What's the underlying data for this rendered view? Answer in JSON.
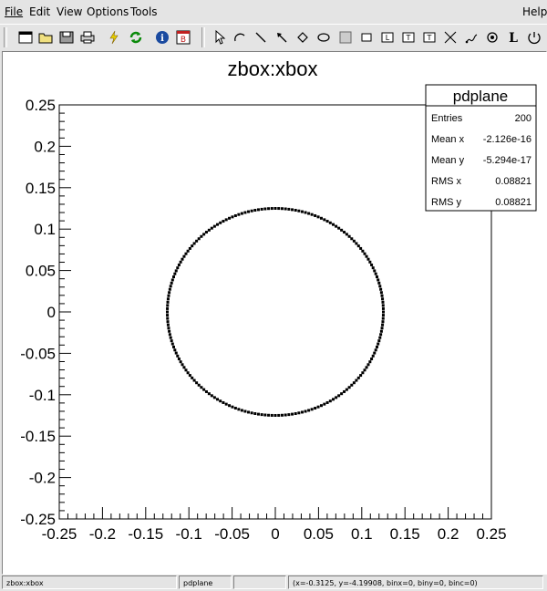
{
  "menu": {
    "file": "File",
    "edit": "Edit",
    "view": "View",
    "options": "Options",
    "tools": "Tools",
    "help": "Help"
  },
  "toolbar": {
    "icons": [
      "new-canvas-icon",
      "open-folder-icon",
      "save-icon",
      "print-icon",
      "lightning-icon",
      "refresh-icon",
      "info-icon",
      "browser-icon",
      "pointer-icon",
      "arc-icon",
      "line-icon",
      "arrow-icon",
      "diamond-icon",
      "ellipse-icon",
      "pad-icon",
      "pave-icon",
      "pavetext-label-icon",
      "pavestext-icon",
      "text-icon",
      "graph-cut-icon",
      "curly-arc-icon",
      "marker-icon",
      "latex-icon",
      "editor-icon"
    ]
  },
  "stats": {
    "title": "pdplane",
    "rows": [
      {
        "label": "Entries",
        "value": "200"
      },
      {
        "label": "Mean x",
        "value": "-2.126e-16"
      },
      {
        "label": "Mean y",
        "value": "-5.294e-17"
      },
      {
        "label": "RMS x",
        "value": "0.08821"
      },
      {
        "label": "RMS y",
        "value": "0.08821"
      }
    ]
  },
  "chart_data": {
    "type": "scatter",
    "title": "zbox:xbox",
    "xlabel": "",
    "ylabel": "",
    "xlim": [
      -0.25,
      0.25
    ],
    "ylim": [
      -0.25,
      0.25
    ],
    "x_ticks": [
      "-0.25",
      "-0.2",
      "-0.15",
      "-0.1",
      "-0.05",
      "0",
      "0.05",
      "0.1",
      "0.15",
      "0.2",
      "0.25"
    ],
    "y_ticks": [
      "0.25",
      "0.2",
      "0.15",
      "0.1",
      "0.05",
      "0",
      "-0.05",
      "-0.1",
      "-0.15",
      "-0.2",
      "-0.25"
    ],
    "grid": false,
    "series": [
      {
        "points": "200 points on a circle centered at (0,0) with radius 0.125",
        "center": [
          0,
          0
        ],
        "radius": 0.125,
        "count": 200
      }
    ]
  },
  "status": {
    "object": "zbox:xbox",
    "class": "pdplane",
    "info": "",
    "coords": "(x=-0.3125, y=-4.19908, binx=0, biny=0, binc=0)"
  }
}
